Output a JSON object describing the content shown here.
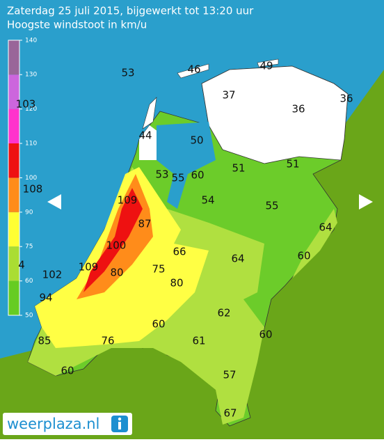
{
  "header": {
    "title": "Zaterdag 25 juli 2015, bijgewerkt tot 13:20 uur",
    "subtitle": "Hoogste windstoot in km/u"
  },
  "legend": {
    "ticks": [
      50,
      60,
      75,
      90,
      100,
      110,
      120,
      130,
      140
    ],
    "colors": [
      "#66cc22",
      "#aadd33",
      "#ffff33",
      "#ff8c1a",
      "#ee1111",
      "#ff33cc",
      "#cc66dd",
      "#996699"
    ]
  },
  "stations": [
    53,
    46,
    49,
    37,
    36,
    36,
    44,
    50,
    51,
    51,
    53,
    55,
    60,
    54,
    55,
    109,
    87,
    64,
    100,
    66,
    64,
    60,
    109,
    80,
    75,
    80,
    102,
    94,
    60,
    62,
    85,
    76,
    61,
    60,
    60,
    57,
    67,
    103,
    108,
    4
  ],
  "logo": "weerplaza.nl"
}
